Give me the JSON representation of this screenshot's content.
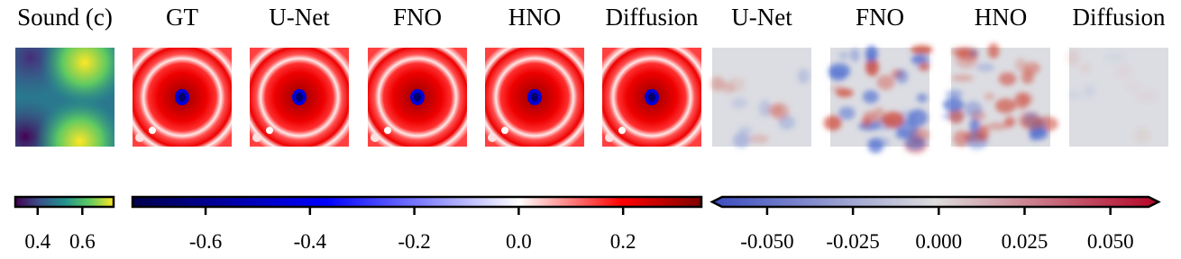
{
  "panels": [
    {
      "title": "Sound (c)"
    },
    {
      "title": "GT"
    },
    {
      "title": "U-Net"
    },
    {
      "title": "FNO"
    },
    {
      "title": "HNO"
    },
    {
      "title": "Diffusion"
    },
    {
      "title": "U-Net"
    },
    {
      "title": "FNO"
    },
    {
      "title": "HNO"
    },
    {
      "title": "Diffusion"
    }
  ],
  "colorbars": [
    {
      "colormap": "viridis",
      "lim": [
        0.3,
        0.74
      ],
      "ticks": [
        0.4,
        0.6
      ],
      "extend": false
    },
    {
      "colormap": "seismic",
      "lim": [
        -0.74,
        0.35
      ],
      "ticks": [
        -0.6,
        -0.4,
        -0.2,
        {
          "value": 0.0,
          "label": "0.0"
        },
        0.2
      ],
      "extend": false
    },
    {
      "colormap": "coolwarm",
      "lim": [
        -0.066,
        0.064
      ],
      "ticks": [
        {
          "value": -0.05,
          "label": "-0.050"
        },
        {
          "value": -0.025,
          "label": "-0.025"
        },
        {
          "value": 0.0,
          "label": "0.000"
        },
        {
          "value": 0.025,
          "label": "0.025"
        },
        {
          "value": 0.05,
          "label": "0.050"
        }
      ],
      "extend": true
    }
  ]
}
